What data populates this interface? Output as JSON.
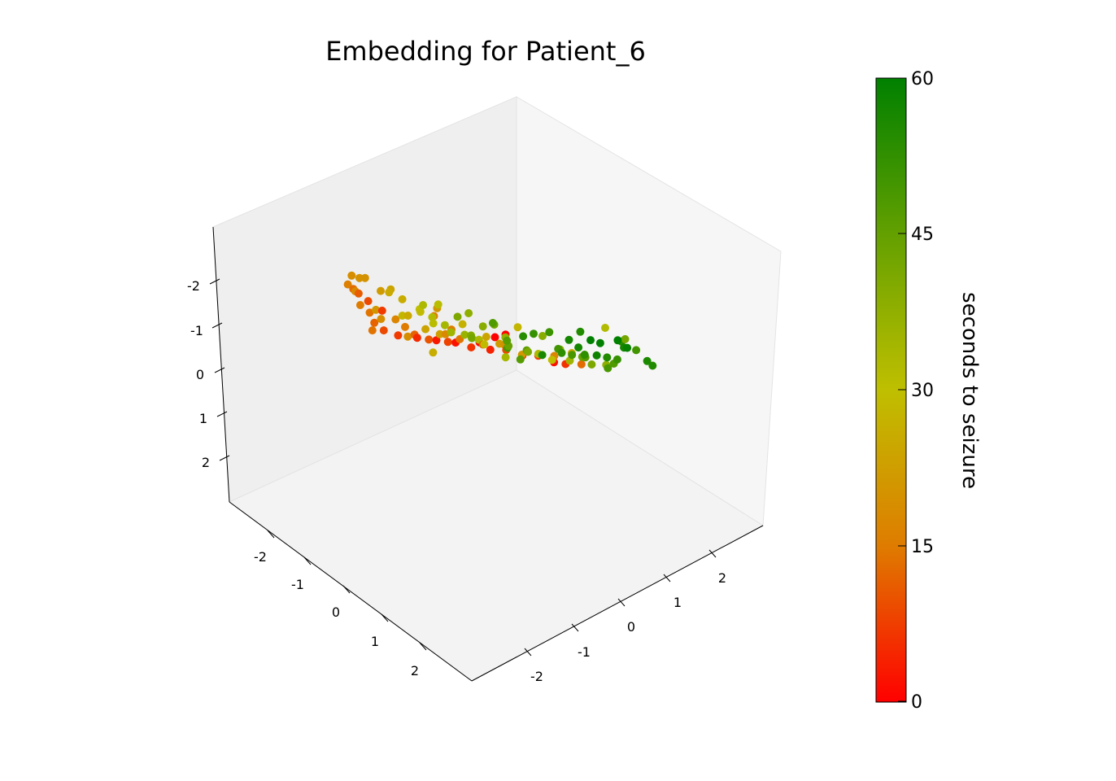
{
  "chart_data": {
    "type": "scatter",
    "projection": "3d",
    "title": "Embedding for Patient_6",
    "xlabel": "",
    "ylabel": "",
    "zlabel": "",
    "xlim": [
      -3,
      3
    ],
    "ylim": [
      -3,
      3
    ],
    "zlim": [
      -3,
      3
    ],
    "x_ticks": [
      "-2",
      "-1",
      "0",
      "1",
      "2"
    ],
    "y_ticks": [
      "-2",
      "-1",
      "0",
      "1",
      "2"
    ],
    "z_ticks": [
      "-2",
      "-1",
      "0",
      "1",
      "2"
    ],
    "grid": false,
    "colorbar": {
      "label": "seconds to seizure",
      "min": 0,
      "max": 60,
      "ticks": [
        "0",
        "15",
        "30",
        "45",
        "60"
      ],
      "colors": [
        "#ff0000",
        "#df7c00",
        "#bfbf00",
        "#63a000",
        "#008000"
      ]
    },
    "point_color": "seconds to seizure",
    "points": [
      {
        "x": -0.9,
        "y": -2.2,
        "z": -2.1,
        "t": 20
      },
      {
        "x": -0.6,
        "y": -2.0,
        "z": -1.9,
        "t": 22
      },
      {
        "x": -0.3,
        "y": -1.8,
        "z": -1.8,
        "t": 26
      },
      {
        "x": -0.1,
        "y": -1.6,
        "z": -1.6,
        "t": 30
      },
      {
        "x": 0.1,
        "y": -1.5,
        "z": -1.5,
        "t": 32
      },
      {
        "x": -1.2,
        "y": -2.0,
        "z": -1.5,
        "t": 18
      },
      {
        "x": -0.8,
        "y": -1.9,
        "z": -1.3,
        "t": 21
      },
      {
        "x": -0.5,
        "y": -1.6,
        "z": -1.2,
        "t": 28
      },
      {
        "x": 0.3,
        "y": -1.4,
        "z": -1.4,
        "t": 34
      },
      {
        "x": 0.6,
        "y": -1.1,
        "z": -1.2,
        "t": 40
      },
      {
        "x": -1.4,
        "y": -1.7,
        "z": -0.9,
        "t": 15
      },
      {
        "x": -1.0,
        "y": -1.6,
        "z": -0.8,
        "t": 19
      },
      {
        "x": -0.7,
        "y": -1.3,
        "z": -0.9,
        "t": 25
      },
      {
        "x": -0.2,
        "y": -1.2,
        "z": -1.0,
        "t": 31
      },
      {
        "x": 0.4,
        "y": -0.9,
        "z": -0.9,
        "t": 42
      },
      {
        "x": 0.9,
        "y": -0.6,
        "z": -1.0,
        "t": 47
      },
      {
        "x": -1.5,
        "y": -1.4,
        "z": -0.5,
        "t": 14
      },
      {
        "x": -1.1,
        "y": -1.2,
        "z": -0.5,
        "t": 17
      },
      {
        "x": -0.6,
        "y": -1.0,
        "z": -0.5,
        "t": 24
      },
      {
        "x": 0.0,
        "y": -0.7,
        "z": -0.6,
        "t": 36
      },
      {
        "x": 0.7,
        "y": -0.4,
        "z": -0.6,
        "t": 50
      },
      {
        "x": 1.2,
        "y": -0.1,
        "z": -0.6,
        "t": 56
      },
      {
        "x": -1.6,
        "y": -1.2,
        "z": -0.1,
        "t": 12
      },
      {
        "x": -1.2,
        "y": -0.9,
        "z": -0.1,
        "t": 15
      },
      {
        "x": -0.7,
        "y": -0.6,
        "z": -0.1,
        "t": 23
      },
      {
        "x": -0.1,
        "y": -0.3,
        "z": -0.2,
        "t": 33
      },
      {
        "x": 0.6,
        "y": 0.1,
        "z": -0.2,
        "t": 46
      },
      {
        "x": 1.1,
        "y": 0.4,
        "z": -0.3,
        "t": 53
      },
      {
        "x": 1.6,
        "y": 0.7,
        "z": -0.4,
        "t": 58
      },
      {
        "x": -1.7,
        "y": -0.9,
        "z": 0.3,
        "t": 9
      },
      {
        "x": -1.3,
        "y": -0.6,
        "z": 0.3,
        "t": 12
      },
      {
        "x": -0.9,
        "y": -0.3,
        "z": 0.2,
        "t": 18
      },
      {
        "x": -0.3,
        "y": 0.0,
        "z": 0.2,
        "t": 29
      },
      {
        "x": 0.3,
        "y": 0.4,
        "z": 0.2,
        "t": 41
      },
      {
        "x": 0.9,
        "y": 0.8,
        "z": 0.1,
        "t": 49
      },
      {
        "x": 1.4,
        "y": 1.1,
        "z": 0.0,
        "t": 55
      },
      {
        "x": -1.8,
        "y": -0.5,
        "z": 0.7,
        "t": 7
      },
      {
        "x": -1.4,
        "y": -0.2,
        "z": 0.7,
        "t": 10
      },
      {
        "x": -1.0,
        "y": 0.1,
        "z": 0.6,
        "t": 14
      },
      {
        "x": -0.5,
        "y": 0.5,
        "z": 0.6,
        "t": 22
      },
      {
        "x": 0.1,
        "y": 0.8,
        "z": 0.6,
        "t": 33
      },
      {
        "x": 0.7,
        "y": 1.2,
        "z": 0.5,
        "t": 44
      },
      {
        "x": 1.2,
        "y": 1.5,
        "z": 0.4,
        "t": 52
      },
      {
        "x": -1.9,
        "y": 0.0,
        "z": 1.1,
        "t": 5
      },
      {
        "x": -1.5,
        "y": 0.3,
        "z": 1.1,
        "t": 8
      },
      {
        "x": -1.0,
        "y": 0.6,
        "z": 1.0,
        "t": 12
      },
      {
        "x": -0.4,
        "y": 0.9,
        "z": 1.0,
        "t": 21
      },
      {
        "x": 0.3,
        "y": 1.3,
        "z": 0.9,
        "t": 35
      },
      {
        "x": 0.9,
        "y": 1.7,
        "z": 0.8,
        "t": 48
      },
      {
        "x": -2.0,
        "y": 0.5,
        "z": 1.5,
        "t": 3
      },
      {
        "x": -1.5,
        "y": 0.8,
        "z": 1.5,
        "t": 6
      },
      {
        "x": -1.0,
        "y": 1.1,
        "z": 1.4,
        "t": 9
      },
      {
        "x": -0.3,
        "y": 1.5,
        "z": 1.3,
        "t": 17
      },
      {
        "x": 0.5,
        "y": 1.9,
        "z": 1.2,
        "t": 38
      },
      {
        "x": -2.1,
        "y": 1.0,
        "z": 1.9,
        "t": 2
      },
      {
        "x": -1.6,
        "y": 1.3,
        "z": 1.9,
        "t": 4
      },
      {
        "x": -0.9,
        "y": 1.7,
        "z": 1.8,
        "t": 8
      },
      {
        "x": -0.2,
        "y": 2.0,
        "z": 1.7,
        "t": 13
      },
      {
        "x": -2.2,
        "y": 1.6,
        "z": 2.3,
        "t": 1
      },
      {
        "x": -1.5,
        "y": 1.9,
        "z": 2.3,
        "t": 3
      },
      {
        "x": -0.8,
        "y": 2.2,
        "z": 2.2,
        "t": 6
      },
      {
        "x": -2.4,
        "y": 2.1,
        "z": 2.6,
        "t": 0
      },
      {
        "x": -1.3,
        "y": 2.4,
        "z": 2.6,
        "t": 2
      },
      {
        "x": -2.6,
        "y": 2.5,
        "z": 2.9,
        "t": 0
      },
      {
        "x": -1.1,
        "y": -1.9,
        "z": -1.8,
        "t": 20
      },
      {
        "x": -0.7,
        "y": -1.7,
        "z": -1.7,
        "t": 24
      },
      {
        "x": 0.0,
        "y": -1.3,
        "z": -1.6,
        "t": 31
      },
      {
        "x": 0.4,
        "y": -1.0,
        "z": -1.5,
        "t": 38
      },
      {
        "x": 0.8,
        "y": -0.8,
        "z": -1.4,
        "t": 43
      },
      {
        "x": 1.3,
        "y": -0.4,
        "z": -1.3,
        "t": 52
      },
      {
        "x": 1.7,
        "y": 0.0,
        "z": -1.2,
        "t": 57
      },
      {
        "x": 2.0,
        "y": 0.4,
        "z": -1.1,
        "t": 60
      },
      {
        "x": 2.2,
        "y": 0.8,
        "z": -0.9,
        "t": 59
      },
      {
        "x": 1.9,
        "y": 1.0,
        "z": -0.6,
        "t": 57
      },
      {
        "x": 1.5,
        "y": 1.3,
        "z": -0.3,
        "t": 54
      },
      {
        "x": 1.8,
        "y": 1.6,
        "z": 0.1,
        "t": 56
      },
      {
        "x": 1.3,
        "y": 1.8,
        "z": 0.3,
        "t": 50
      },
      {
        "x": 0.8,
        "y": 2.0,
        "z": 0.5,
        "t": 42
      },
      {
        "x": 0.2,
        "y": 2.1,
        "z": 0.7,
        "t": 32
      },
      {
        "x": -0.5,
        "y": -0.9,
        "z": 0.0,
        "t": 26
      },
      {
        "x": -0.9,
        "y": -1.1,
        "z": -0.2,
        "t": 19
      },
      {
        "x": -1.3,
        "y": -1.5,
        "z": -0.3,
        "t": 14
      },
      {
        "x": -0.3,
        "y": -1.4,
        "z": -1.3,
        "t": 29
      },
      {
        "x": 0.2,
        "y": -0.5,
        "z": -0.8,
        "t": 39
      },
      {
        "x": 0.5,
        "y": -0.2,
        "z": -0.4,
        "t": 44
      },
      {
        "x": 1.0,
        "y": 0.2,
        "z": -0.8,
        "t": 51
      },
      {
        "x": 1.4,
        "y": 0.5,
        "z": -0.9,
        "t": 55
      },
      {
        "x": 0.0,
        "y": 0.2,
        "z": 0.4,
        "t": 34
      },
      {
        "x": -0.6,
        "y": 0.3,
        "z": 0.4,
        "t": 24
      },
      {
        "x": -1.1,
        "y": 0.0,
        "z": 0.4,
        "t": 15
      },
      {
        "x": 0.5,
        "y": 0.9,
        "z": 0.3,
        "t": 40
      },
      {
        "x": 1.0,
        "y": 1.0,
        "z": 0.2,
        "t": 47
      },
      {
        "x": 0.1,
        "y": 1.1,
        "z": 0.9,
        "t": 30
      },
      {
        "x": -0.6,
        "y": 0.7,
        "z": 0.8,
        "t": 20
      },
      {
        "x": 0.6,
        "y": 1.5,
        "z": 0.9,
        "t": 41
      },
      {
        "x": -1.2,
        "y": -2.1,
        "z": -1.9,
        "t": 19
      },
      {
        "x": -0.4,
        "y": -2.0,
        "z": -2.0,
        "t": 25
      },
      {
        "x": 0.2,
        "y": -1.8,
        "z": -2.0,
        "t": 33
      },
      {
        "x": 0.7,
        "y": -1.5,
        "z": -1.9,
        "t": 41
      },
      {
        "x": 1.1,
        "y": -1.1,
        "z": -1.8,
        "t": 48
      },
      {
        "x": 1.5,
        "y": -0.8,
        "z": -1.6,
        "t": 54
      },
      {
        "x": -1.5,
        "y": -1.9,
        "z": -1.4,
        "t": 16
      },
      {
        "x": -1.7,
        "y": -1.6,
        "z": -1.0,
        "t": 13
      },
      {
        "x": -1.9,
        "y": -1.3,
        "z": -0.6,
        "t": 11
      },
      {
        "x": -2.0,
        "y": -1.0,
        "z": -0.2,
        "t": 9
      },
      {
        "x": -2.1,
        "y": -0.6,
        "z": 0.3,
        "t": 7
      },
      {
        "x": 0.9,
        "y": 0.5,
        "z": -0.2,
        "t": 50
      },
      {
        "x": 1.2,
        "y": 0.8,
        "z": -0.1,
        "t": 53
      },
      {
        "x": 0.4,
        "y": 0.6,
        "z": -0.1,
        "t": 39
      },
      {
        "x": -0.2,
        "y": 0.6,
        "z": 0.1,
        "t": 28
      },
      {
        "x": 0.3,
        "y": -0.1,
        "z": -0.4,
        "t": 37
      },
      {
        "x": -0.4,
        "y": -0.4,
        "z": -0.4,
        "t": 27
      },
      {
        "x": 0.8,
        "y": -0.2,
        "z": -0.3,
        "t": 47
      },
      {
        "x": 1.6,
        "y": 0.3,
        "z": -0.8,
        "t": 57
      },
      {
        "x": 2.1,
        "y": 0.1,
        "z": -1.4,
        "t": 60
      },
      {
        "x": 2.3,
        "y": 0.5,
        "z": -1.3,
        "t": 60
      },
      {
        "x": 1.1,
        "y": 1.4,
        "z": 0.6,
        "t": 49
      },
      {
        "x": 1.6,
        "y": 1.9,
        "z": 0.5,
        "t": 55
      },
      {
        "x": -0.1,
        "y": -0.9,
        "z": -0.7,
        "t": 35
      },
      {
        "x": -0.8,
        "y": -0.6,
        "z": -0.6,
        "t": 21
      },
      {
        "x": -1.2,
        "y": -0.3,
        "z": 0.0,
        "t": 16
      },
      {
        "x": 0.0,
        "y": 1.6,
        "z": 1.1,
        "t": 25
      }
    ]
  }
}
